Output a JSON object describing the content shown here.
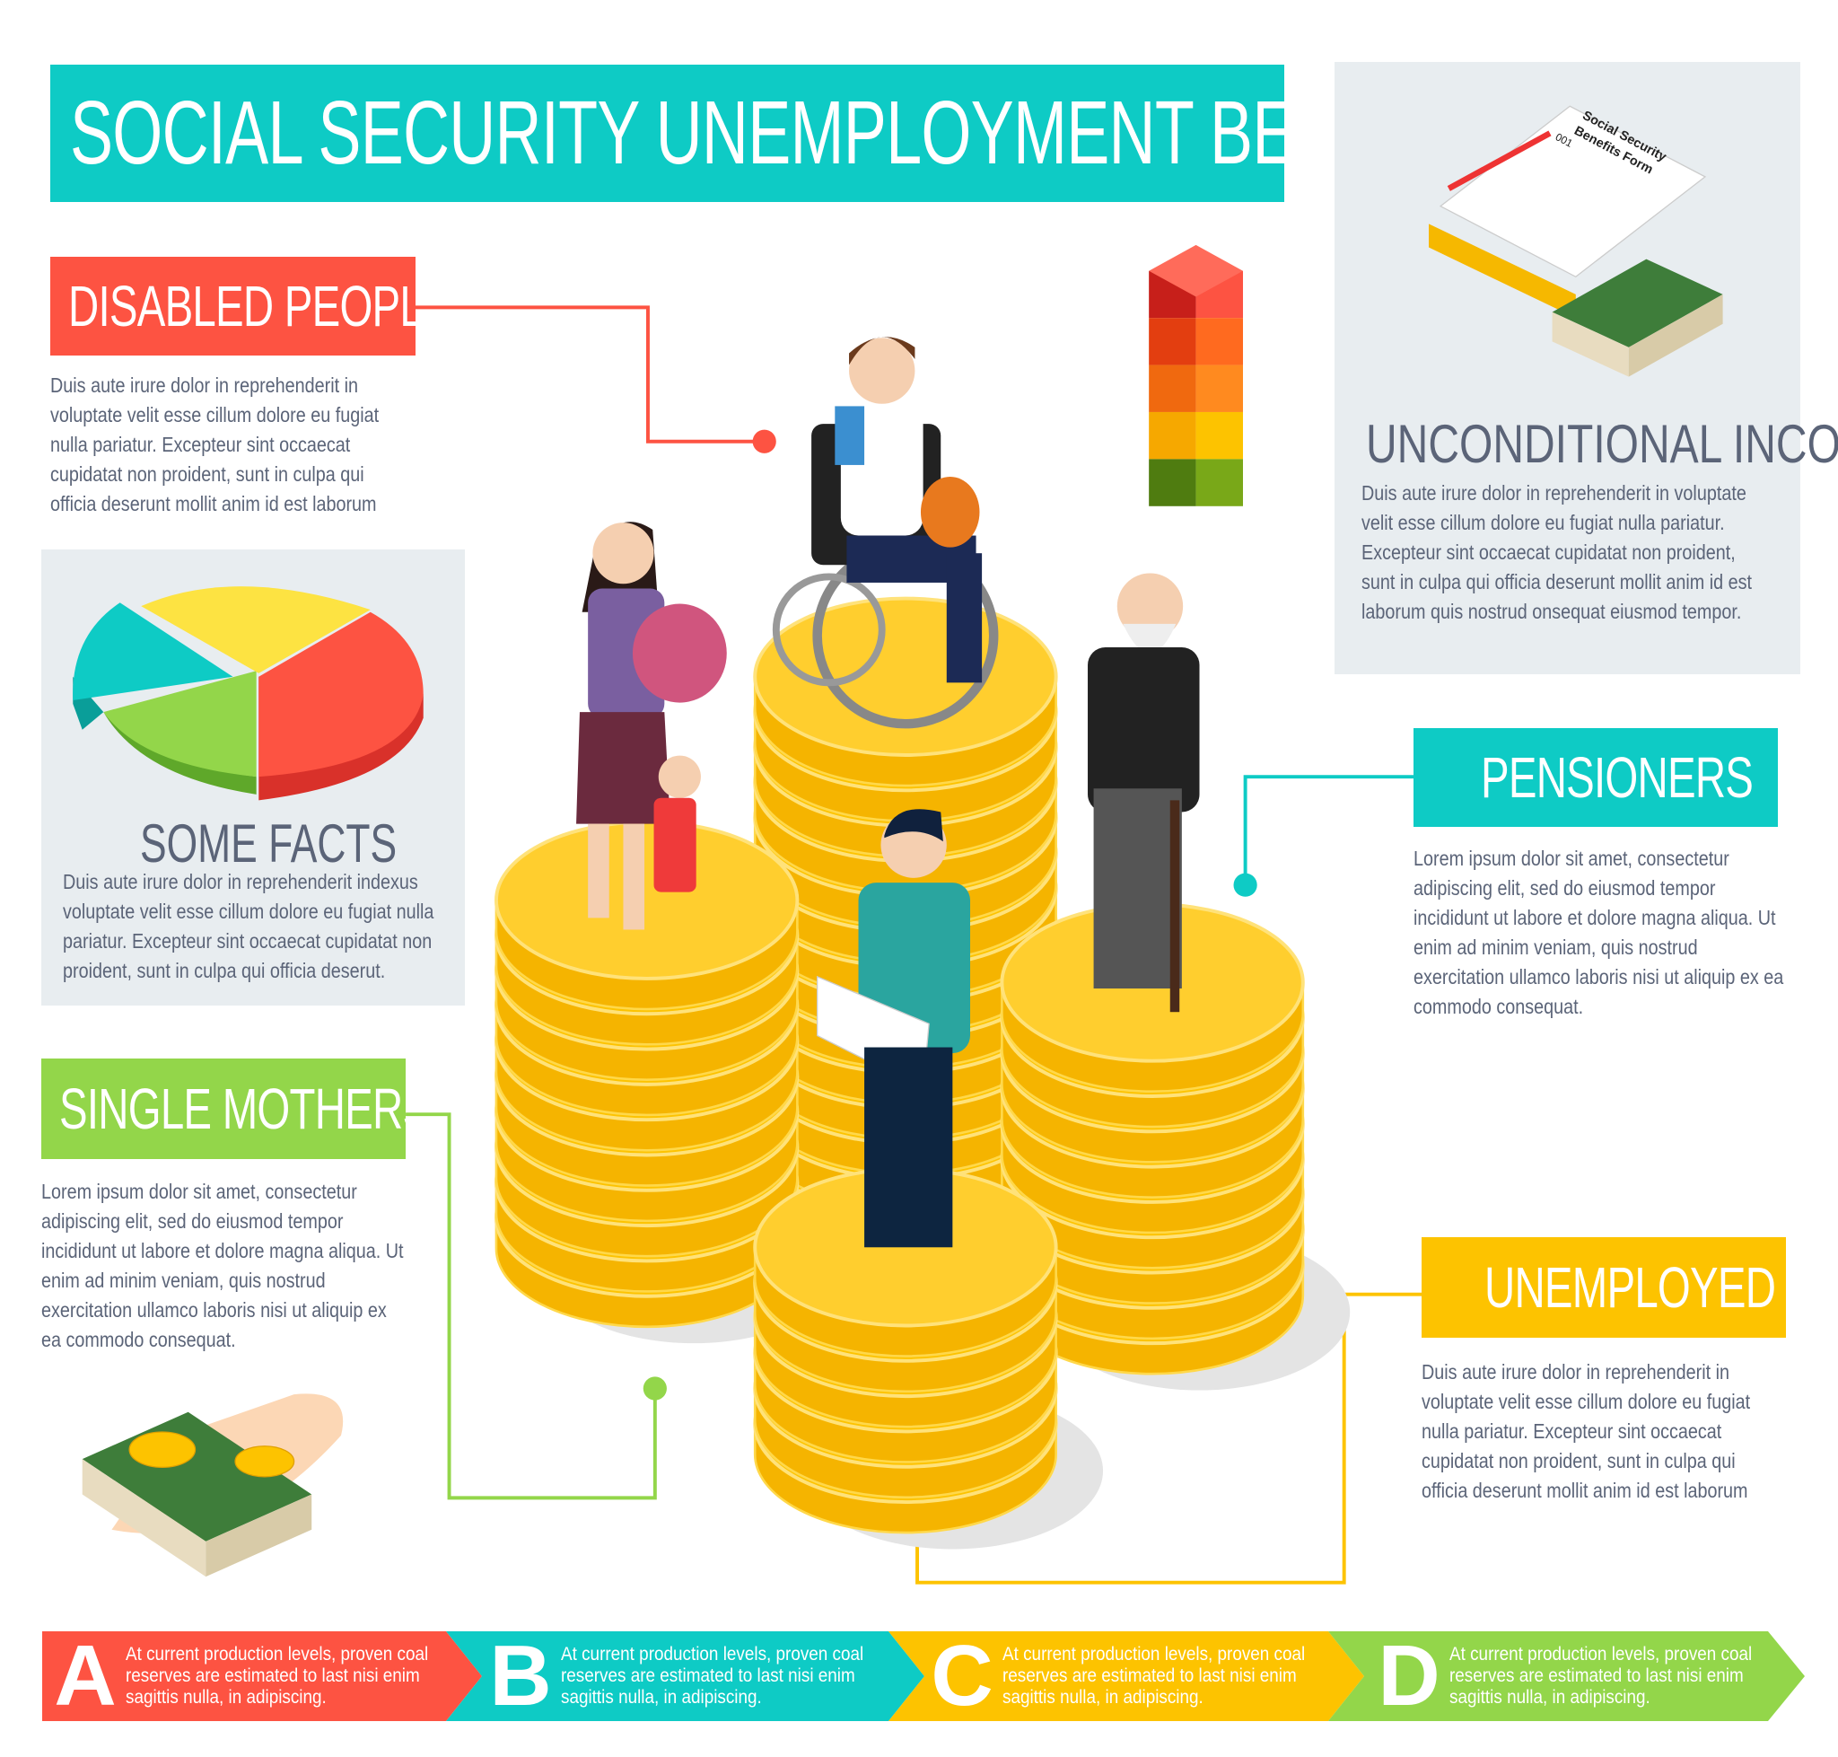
{
  "title": "SOCIAL SECURITY UNEMPLOYMENT BENEFITS",
  "colors": {
    "teal": "#0ecbc5",
    "red": "#fd5342",
    "green": "#93d64a",
    "yellow": "#fdc300",
    "text": "#5b6478",
    "panel": "#e8edf0"
  },
  "disabled": {
    "heading": "DISABLED PEOPLE",
    "text": "Duis aute irure dolor in reprehenderit in voluptate velit esse cillum dolore eu fugiat nulla pariatur. Excepteur sint occaecat cupidatat non proident, sunt in culpa qui officia deserunt mollit anim id est laborum"
  },
  "facts": {
    "heading": "SOME FACTS",
    "text": "Duis aute irure dolor in reprehenderit indexus voluptate velit esse cillum dolore eu fugiat nulla pariatur. Excepteur sint occaecat cupidatat non proident, sunt in culpa qui officia deserut."
  },
  "mothers": {
    "heading": "SINGLE MOTHERS",
    "text": "Lorem ipsum dolor sit amet, consectetur adipiscing elit, sed do eiusmod tempor incididunt ut labore et dolore magna aliqua. Ut enim ad minim veniam, quis nostrud exercitation ullamco laboris nisi ut aliquip ex ea commodo consequat."
  },
  "income": {
    "heading": "UNCONDITIONAL INCOME",
    "text": "Duis aute irure dolor in reprehenderit in voluptate velit esse cillum dolore eu fugiat nulla pariatur. Excepteur sint occaecat cupidatat non proident, sunt in culpa qui officia deserunt mollit anim id est laborum quis nostrud  onsequat eiusmod tempor.",
    "form_label_1": "Social Security",
    "form_label_2": "Benefits Form",
    "form_number": "001"
  },
  "pensioners": {
    "heading": "PENSIONERS",
    "text": "Lorem ipsum dolor sit amet, consectetur adipiscing elit, sed do eiusmod tempor incididunt ut labore et dolore magna aliqua. Ut enim ad minim veniam, quis nostrud exercitation ullamco laboris nisi ut aliquip ex ea commodo consequat."
  },
  "unemployed": {
    "heading": "UNEMPLOYED",
    "text": "Duis aute irure dolor in reprehenderit in voluptate velit esse cillum dolore eu fugiat nulla pariatur. Excepteur sint occaecat cupidatat non proident, sunt in culpa qui officia deserunt mollit anim id est laborum"
  },
  "steps": [
    {
      "letter": "A",
      "text": "At current production levels, proven coal reserves are estimated to last nisi enim sagittis nulla, in adipiscing.",
      "color": "#fd5342"
    },
    {
      "letter": "B",
      "text": "At current production levels, proven coal reserves are estimated to last nisi enim sagittis nulla, in adipiscing.",
      "color": "#0ecbc5"
    },
    {
      "letter": "C",
      "text": "At current production levels, proven coal reserves are estimated to last nisi enim sagittis nulla, in adipiscing.",
      "color": "#fdc300"
    },
    {
      "letter": "D",
      "text": "At current production levels, proven coal reserves are estimated to last nisi enim sagittis nulla, in adipiscing.",
      "color": "#93d64a"
    }
  ]
}
